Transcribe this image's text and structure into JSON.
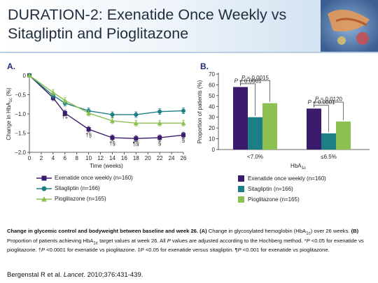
{
  "slide": {
    "title_line1": "DURATION-2: Exenatide Once Weekly vs",
    "title_line2": "Sitagliptin and Pioglitazone"
  },
  "colors": {
    "exenatide": "#3b1b6b",
    "sitagliptin": "#1e7e86",
    "pioglitazone": "#8cc152",
    "header_rule": "#b9cde2",
    "panel_label": "#1e2b7a"
  },
  "chart_data": [
    {
      "panel": "A.",
      "type": "line",
      "xlabel": "Time (weeks)",
      "ylabel_parts": [
        "Change in HbA",
        "1c",
        " (%)"
      ],
      "xlim": [
        0,
        26
      ],
      "ylim": [
        -2.0,
        0
      ],
      "xticks": [
        0,
        2,
        4,
        6,
        8,
        10,
        12,
        14,
        16,
        18,
        20,
        22,
        24,
        26
      ],
      "yticks": [
        0,
        -0.5,
        -1.0,
        -1.5,
        -2.0
      ],
      "ytick_labels": [
        "0",
        "−0.5",
        "−1.0",
        "−1.5",
        "−2.0"
      ],
      "series": [
        {
          "name": "Exenatide once weekly (n=160)",
          "key": "exenatide",
          "marker": "square",
          "x": [
            0,
            4,
            6,
            10,
            14,
            18,
            22,
            26
          ],
          "y": [
            0,
            -0.58,
            -0.98,
            -1.4,
            -1.62,
            -1.64,
            -1.62,
            -1.55
          ]
        },
        {
          "name": "Sitagliptin (n=166)",
          "key": "sitagliptin",
          "marker": "circle",
          "x": [
            0,
            4,
            6,
            10,
            14,
            18,
            22,
            26
          ],
          "y": [
            0,
            -0.52,
            -0.72,
            -0.92,
            -1.02,
            -1.02,
            -0.94,
            -0.92
          ]
        },
        {
          "name": "Pioglitazone (n=165)",
          "key": "pioglitazone",
          "marker": "triangle",
          "x": [
            0,
            4,
            6,
            10,
            14,
            18,
            22,
            26
          ],
          "y": [
            0,
            -0.44,
            -0.65,
            -0.98,
            -1.18,
            -1.24,
            -1.24,
            -1.24
          ]
        }
      ],
      "annotations": [
        {
          "x": 6,
          "y": -1.12,
          "text": "†‡"
        },
        {
          "x": 10,
          "y": -1.6,
          "text": "†§"
        },
        {
          "x": 14,
          "y": -1.82,
          "text": "†§"
        },
        {
          "x": 18,
          "y": -1.83,
          "text": "¶§"
        },
        {
          "x": 22,
          "y": -1.82,
          "text": "§"
        },
        {
          "x": 26,
          "y": -1.74,
          "text": "§"
        }
      ],
      "legend": [
        "Exenatide once weekly (n=160)",
        "Sitagliptin (n=166)",
        "Pioglitazone (n=165)"
      ]
    },
    {
      "panel": "B.",
      "type": "bar",
      "ylabel": "Proportion of patients (%)",
      "xlabel_parts": [
        "HbA",
        "1c"
      ],
      "ylim": [
        0,
        70
      ],
      "yticks": [
        0,
        10,
        20,
        30,
        40,
        50,
        60,
        70
      ],
      "categories": [
        "<7.0%",
        "≤6.5%"
      ],
      "series": [
        {
          "name": "Exenatide once weekly (n=160)",
          "key": "exenatide",
          "values": [
            58,
            38
          ]
        },
        {
          "name": "Sitagliptin (n=166)",
          "key": "sitagliptin",
          "values": [
            30,
            15
          ]
        },
        {
          "name": "Pioglitazone (n=165)",
          "key": "pioglitazone",
          "values": [
            43,
            26
          ]
        }
      ],
      "brackets": [
        {
          "category": 0,
          "series": [
            0,
            2
          ],
          "level": 64,
          "text": "P = 0.0015"
        },
        {
          "category": 0,
          "series": [
            0,
            1
          ],
          "level": 61,
          "text": "P < 0.0001"
        },
        {
          "category": 1,
          "series": [
            0,
            2
          ],
          "level": 44,
          "text": "P = 0.0120"
        },
        {
          "category": 1,
          "series": [
            0,
            1
          ],
          "level": 41,
          "text": "P < 0.0001"
        }
      ],
      "legend": [
        "Exenatide once weekly (n=160)",
        "Sitagliptin (n=166)",
        "Pioglitazone (n=165)"
      ]
    }
  ],
  "caption": {
    "bold_lead": "Change in glycemic control and bodyweight between baseline and week 26. (A)",
    "part1": " Change in glycosylated hemoglobin (HbA",
    "sub1": "1c",
    "part2": ") over 26 weeks. ",
    "bold_b": "(B)",
    "part3": " Proportion of patients achieving HbA",
    "sub2": "1c",
    "part4": " target values at week 26. All ",
    "p_italic": "P",
    "part5": " values are adjusted according to the Hochberg method. *",
    "part6": " <0.05 for exenatide vs pioglitazone. †",
    "part7": " <0.0001 for exenatide vs pioglitazone. ‡",
    "part8": " <0.05 for exenatide versus sitagliptin. ¶",
    "part9": " <0.001 for exenatide vs pioglitazone."
  },
  "citation": {
    "authors": "Bergenstal R et al. ",
    "journal": "Lancet",
    "details": ". 2010;376:431-439."
  }
}
